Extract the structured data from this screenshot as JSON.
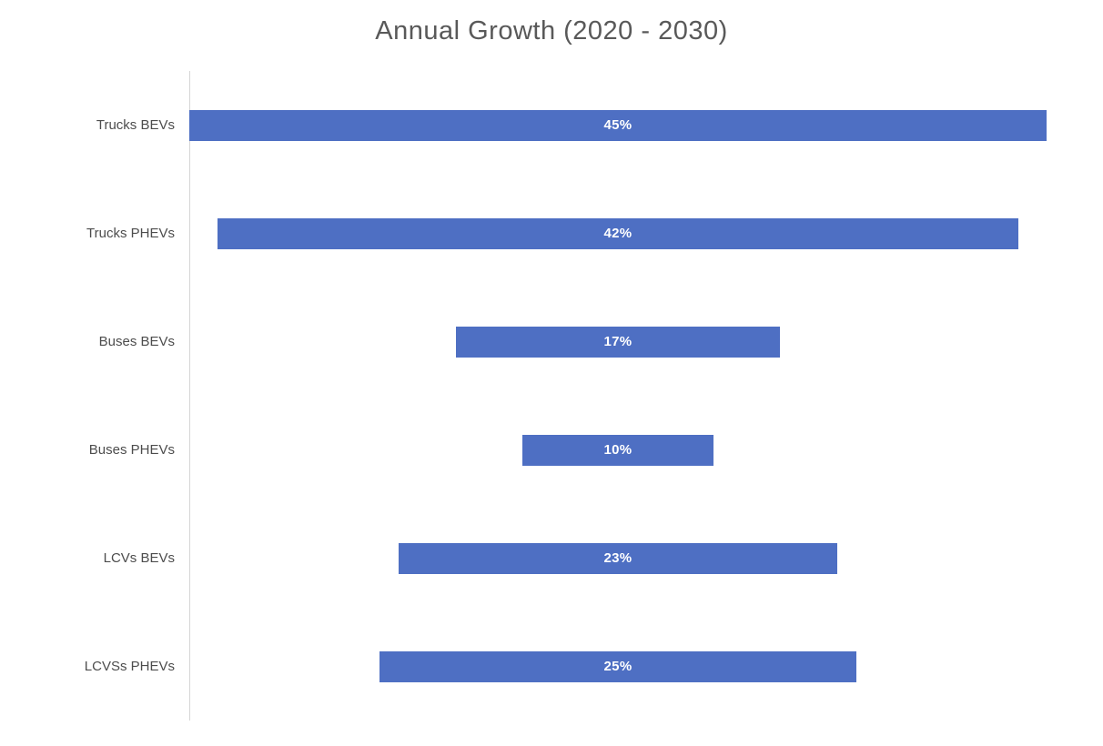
{
  "chart": {
    "title": "Annual Growth (2020 - 2030)"
  },
  "chart_data": {
    "type": "bar",
    "orientation": "horizontal-centered",
    "title": "Annual Growth (2020 - 2030)",
    "categories": [
      "Trucks BEVs",
      "Trucks PHEVs",
      "Buses BEVs",
      "Buses PHEVs",
      "LCVs BEVs",
      "LCVSs PHEVs"
    ],
    "values": [
      45,
      42,
      17,
      10,
      23,
      25
    ],
    "data_labels": [
      "45%",
      "42%",
      "17%",
      "10%",
      "23%",
      "25%"
    ],
    "value_unit": "%",
    "xlabel": "",
    "ylabel": "",
    "legend": false,
    "grid": false,
    "axis_range": [
      0,
      45
    ],
    "colors": {
      "bar": "#4e6fc3",
      "data_label": "#ffffff",
      "category_label": "#4d4d4d",
      "title": "#595959",
      "axis_line": "#d6d6d6",
      "background": "#ffffff"
    }
  }
}
